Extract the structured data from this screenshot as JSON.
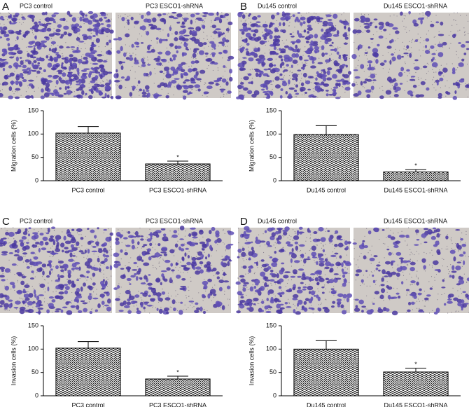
{
  "panels": [
    {
      "label": "A",
      "image_captions": [
        "PC3 control",
        "PC3 ESCO1-shRNA"
      ]
    },
    {
      "label": "B",
      "image_captions": [
        "Du145 control",
        "Du145 ESCO1-shRNA"
      ]
    },
    {
      "label": "C",
      "image_captions": [
        "PC3 control",
        "PC3 ESCO1-shRNA"
      ]
    },
    {
      "label": "D",
      "image_captions": [
        "Du145 control",
        "Du145 ESCO1-shRNA"
      ]
    }
  ],
  "chart_data": [
    {
      "type": "bar",
      "ylabel": "Migration cells (%)",
      "categories": [
        "PC3 control",
        "PC3 ESCO1-shRNA"
      ],
      "values": [
        102,
        36
      ],
      "errors": [
        14,
        6
      ],
      "annotations": [
        {
          "text": "*",
          "category": "PC3 ESCO1-shRNA"
        }
      ],
      "ylim": [
        0,
        150
      ],
      "yticks": [
        0,
        50,
        100,
        150
      ]
    },
    {
      "type": "bar",
      "ylabel": "Migration cells (%)",
      "categories": [
        "Du145 control",
        "Du145 ESCO1-shRNA"
      ],
      "values": [
        99,
        19
      ],
      "errors": [
        19,
        5
      ],
      "annotations": [
        {
          "text": "*",
          "category": "Du145 ESCO1-shRNA"
        }
      ],
      "ylim": [
        0,
        150
      ],
      "yticks": [
        0,
        50,
        100,
        150
      ]
    },
    {
      "type": "bar",
      "ylabel": "Invasion cells (%)",
      "categories": [
        "PC3 control",
        "PC3 ESCO1-shRNA"
      ],
      "values": [
        102,
        36
      ],
      "errors": [
        14,
        6
      ],
      "annotations": [
        {
          "text": "*",
          "category": "PC3 ESCO1-shRNA"
        }
      ],
      "ylim": [
        0,
        150
      ],
      "yticks": [
        0,
        50,
        100,
        150
      ]
    },
    {
      "type": "bar",
      "ylabel": "Invasion cells (%)",
      "categories": [
        "Du145 control",
        "Du145 ESCO1-shRNA"
      ],
      "values": [
        100,
        51
      ],
      "errors": [
        18,
        8
      ],
      "annotations": [
        {
          "text": "*",
          "category": "Du145 ESCO1-shRNA"
        }
      ],
      "ylim": [
        0,
        150
      ],
      "yticks": [
        0,
        50,
        100,
        150
      ]
    }
  ]
}
